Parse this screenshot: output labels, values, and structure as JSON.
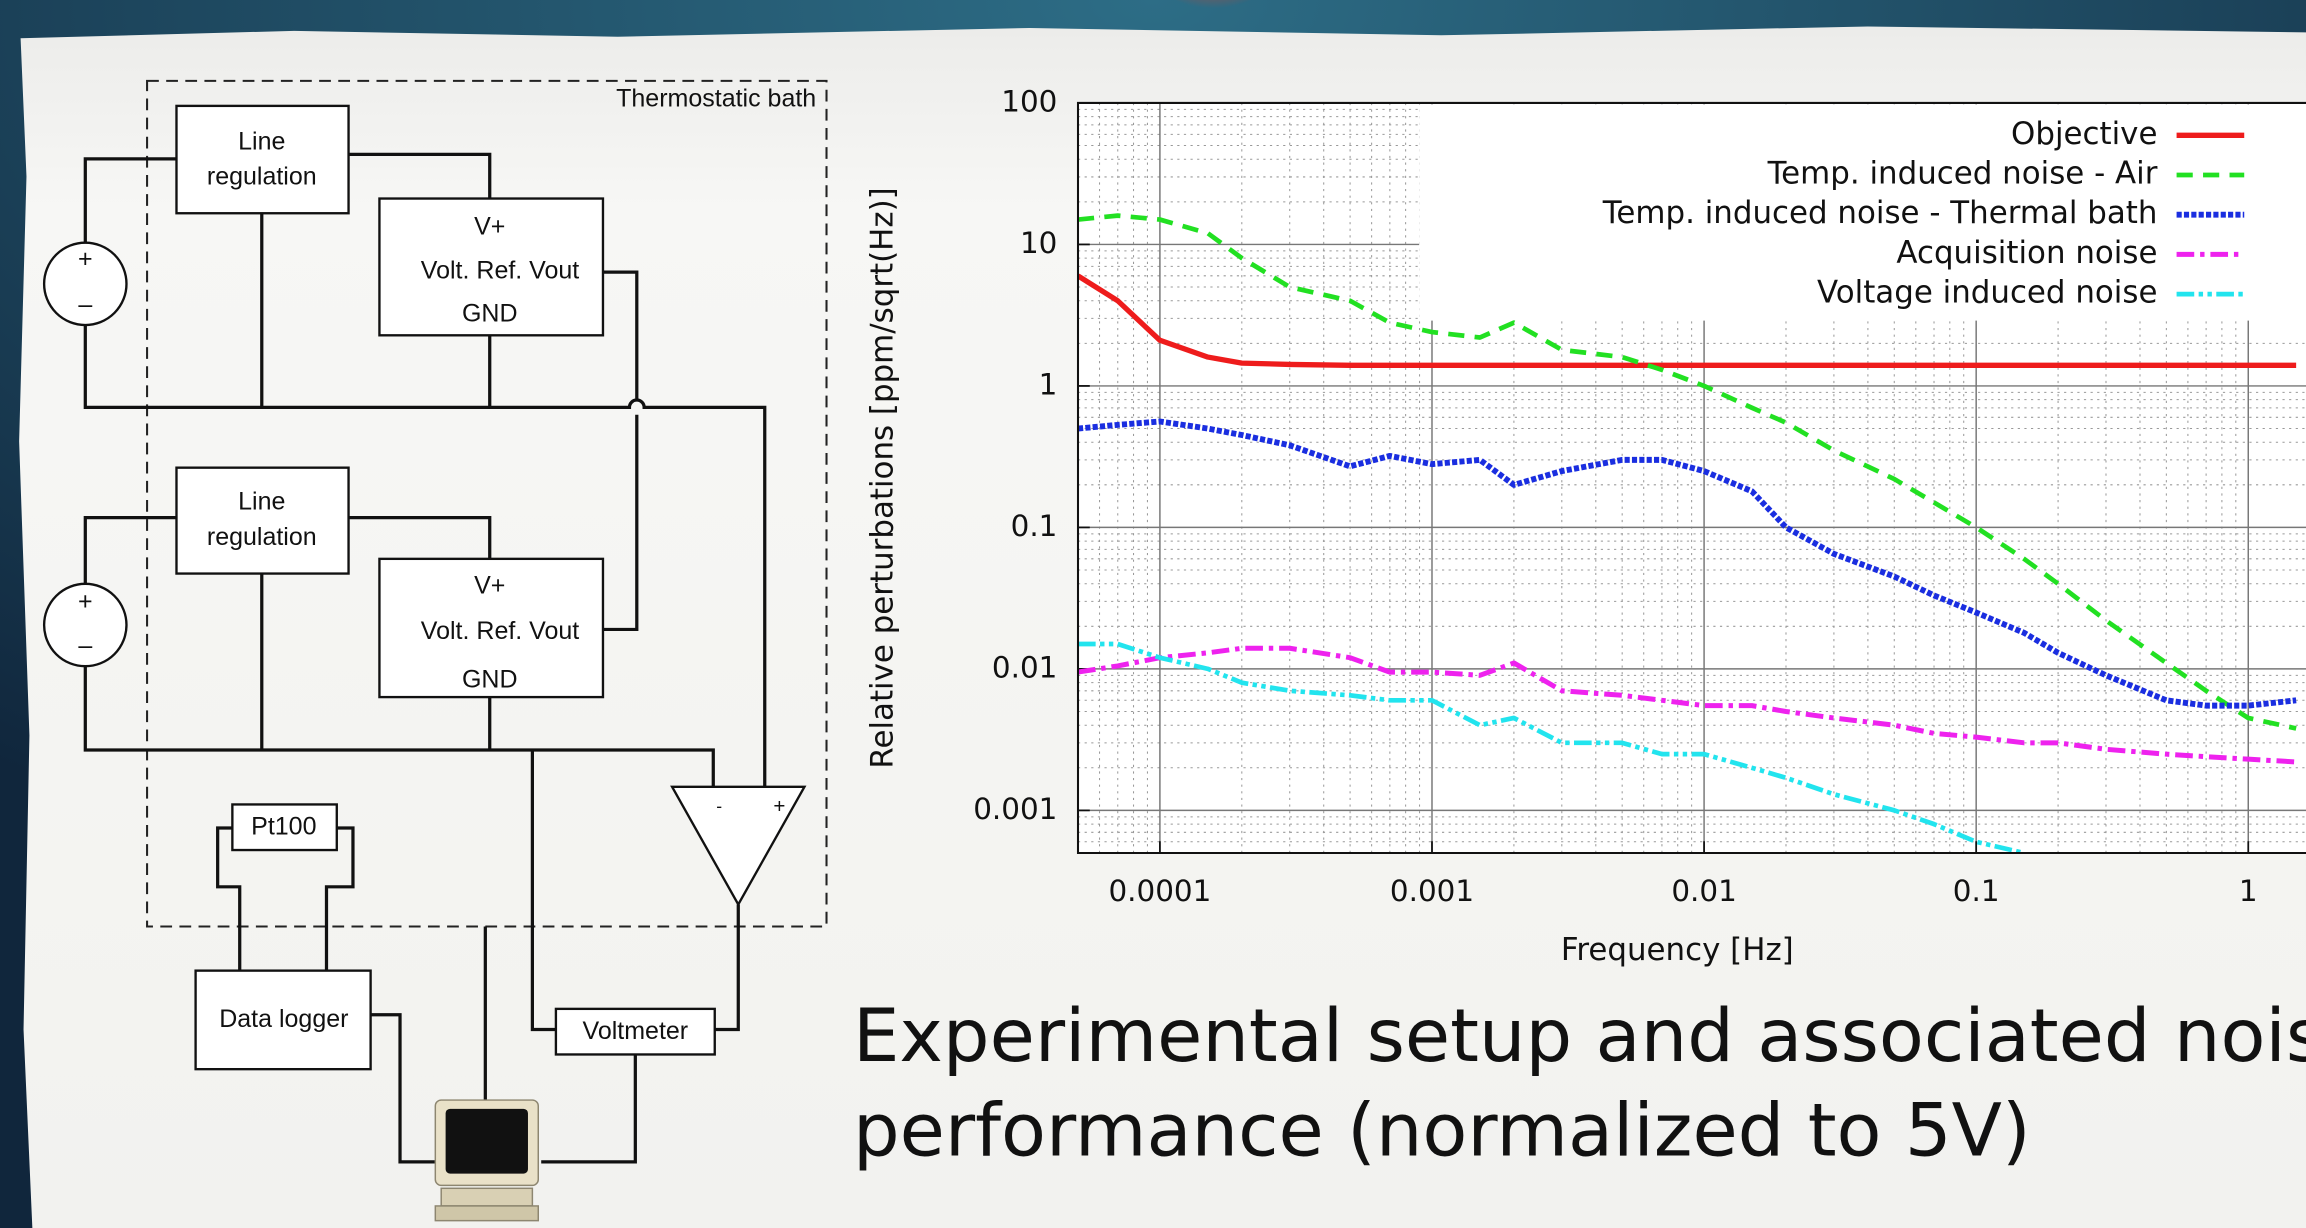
{
  "diagram": {
    "bath_label": "Thermostatic bath",
    "line_regulation_top": [
      "Line",
      "regulation"
    ],
    "volt_ref_top": [
      "V+",
      "Volt. Ref. Vout",
      "GND"
    ],
    "line_regulation_bottom": [
      "Line",
      "regulation"
    ],
    "volt_ref_bottom": [
      "V+",
      "Volt. Ref. Vout",
      "GND"
    ],
    "source_top_signs": [
      "+",
      "–"
    ],
    "source_bottom_signs": [
      "+",
      "–"
    ],
    "opamp_signs": [
      "-",
      "+"
    ],
    "sensor": "Pt100",
    "data_logger": "Data logger",
    "voltmeter": "Voltmeter"
  },
  "caption": [
    "Experimental setup and associated noise",
    "performance (normalized to 5V)"
  ],
  "chart_data": {
    "type": "line",
    "xlabel": "Frequency [Hz]",
    "ylabel": "Relative perturbations [ppm/sqrt(Hz)]",
    "x_log": true,
    "y_log": true,
    "grid": true,
    "legend": "upper right",
    "xlim": [
      5e-05,
      1.63
    ],
    "ylim": [
      0.0005,
      100
    ],
    "xticks": [
      0.0001,
      0.001,
      0.01,
      0.1,
      1
    ],
    "yticks": [
      0.001,
      0.01,
      0.1,
      1,
      10,
      100
    ],
    "x": [
      5e-05,
      7e-05,
      0.0001,
      0.00015,
      0.0002,
      0.0003,
      0.0005,
      0.0007,
      0.001,
      0.0015,
      0.002,
      0.003,
      0.005,
      0.007,
      0.01,
      0.015,
      0.02,
      0.03,
      0.05,
      0.07,
      0.1,
      0.15,
      0.2,
      0.3,
      0.5,
      0.7,
      1,
      1.5
    ],
    "series": [
      {
        "name": "Objective",
        "color": "#ee1c1c",
        "values": [
          6,
          4,
          2.1,
          1.6,
          1.45,
          1.42,
          1.4,
          1.4,
          1.4,
          1.4,
          1.4,
          1.4,
          1.4,
          1.4,
          1.4,
          1.4,
          1.4,
          1.4,
          1.4,
          1.4,
          1.4,
          1.4,
          1.4,
          1.4,
          1.4,
          1.4,
          1.4,
          1.4
        ]
      },
      {
        "name": "Temp. induced noise - Air",
        "color": "#22e022",
        "values": [
          15,
          16,
          15,
          12,
          8,
          5,
          4,
          2.8,
          2.4,
          2.2,
          2.8,
          1.8,
          1.6,
          1.3,
          1.0,
          0.7,
          0.55,
          0.35,
          0.22,
          0.15,
          0.1,
          0.06,
          0.04,
          0.022,
          0.011,
          0.007,
          0.0045,
          0.0038
        ]
      },
      {
        "name": "Temp. induced noise - Thermal bath",
        "color": "#1a2ee0",
        "values": [
          0.5,
          0.53,
          0.56,
          0.5,
          0.45,
          0.38,
          0.27,
          0.32,
          0.28,
          0.3,
          0.2,
          0.25,
          0.3,
          0.3,
          0.25,
          0.18,
          0.1,
          0.065,
          0.045,
          0.033,
          0.025,
          0.018,
          0.013,
          0.009,
          0.006,
          0.0055,
          0.0055,
          0.006
        ]
      },
      {
        "name": "Acquisition noise",
        "color": "#ee22ee",
        "values": [
          0.0095,
          0.0105,
          0.012,
          0.013,
          0.014,
          0.014,
          0.012,
          0.0095,
          0.0095,
          0.009,
          0.011,
          0.007,
          0.0065,
          0.006,
          0.0055,
          0.0055,
          0.005,
          0.0045,
          0.004,
          0.0035,
          0.0033,
          0.003,
          0.003,
          0.0027,
          0.0025,
          0.0024,
          0.0023,
          0.0022
        ]
      },
      {
        "name": "Voltage induced noise",
        "color": "#22e4ee",
        "values": [
          0.015,
          0.015,
          0.012,
          0.01,
          0.008,
          0.007,
          0.0065,
          0.006,
          0.006,
          0.004,
          0.0045,
          0.003,
          0.003,
          0.0025,
          0.0025,
          0.002,
          0.0017,
          0.0013,
          0.001,
          0.0008,
          0.0006,
          0.0005,
          null,
          null,
          null,
          null,
          null,
          null
        ]
      }
    ]
  }
}
